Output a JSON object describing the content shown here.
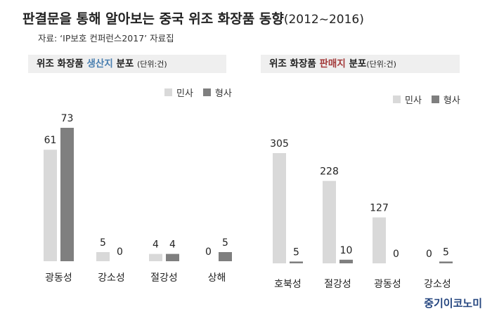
{
  "title": {
    "main": "판결문을 통해 알아보는 중국 위조 화장품 동향",
    "period": "(2012~2016)"
  },
  "source": "자료: ‘IP보호 컨퍼런스2017’ 자료집",
  "brand": "중기이코노미",
  "colors": {
    "minsa": "#d9d9d9",
    "hyeongsa": "#7f7f7f",
    "header_bg": "#efefef",
    "highlight_blue": "#4a7fb0",
    "highlight_red": "#a33a3a",
    "brand": "#24457f"
  },
  "panels": [
    {
      "header_prefix": "위조 화장품 ",
      "header_highlight": "생산지",
      "header_suffix": " 분포",
      "unit": "(단위:건)",
      "legend": [
        "민사",
        "형사"
      ]
    },
    {
      "header_prefix": "위조 화장품 ",
      "header_highlight": "판매지",
      "header_suffix": " 분포",
      "unit": "(단위:건)",
      "legend": [
        "민사",
        "형사"
      ]
    }
  ],
  "chart_data": [
    {
      "type": "bar",
      "title": "위조 화장품 생산지 분포",
      "unit": "(단위:건)",
      "categories": [
        "광동성",
        "강소성",
        "절강성",
        "상해"
      ],
      "series": [
        {
          "name": "민사",
          "values": [
            61,
            5,
            4,
            0
          ]
        },
        {
          "name": "형사",
          "values": [
            73,
            0,
            4,
            5
          ]
        }
      ],
      "legend_position": "top-right",
      "grid": false
    },
    {
      "type": "bar",
      "title": "위조 화장품 판매지 분포",
      "unit": "(단위:건)",
      "categories": [
        "호북성",
        "절강성",
        "광동성",
        "강소성"
      ],
      "series": [
        {
          "name": "민사",
          "values": [
            305,
            228,
            127,
            0
          ]
        },
        {
          "name": "형사",
          "values": [
            5,
            10,
            0,
            5
          ]
        }
      ],
      "legend_position": "top-right",
      "grid": false
    }
  ]
}
